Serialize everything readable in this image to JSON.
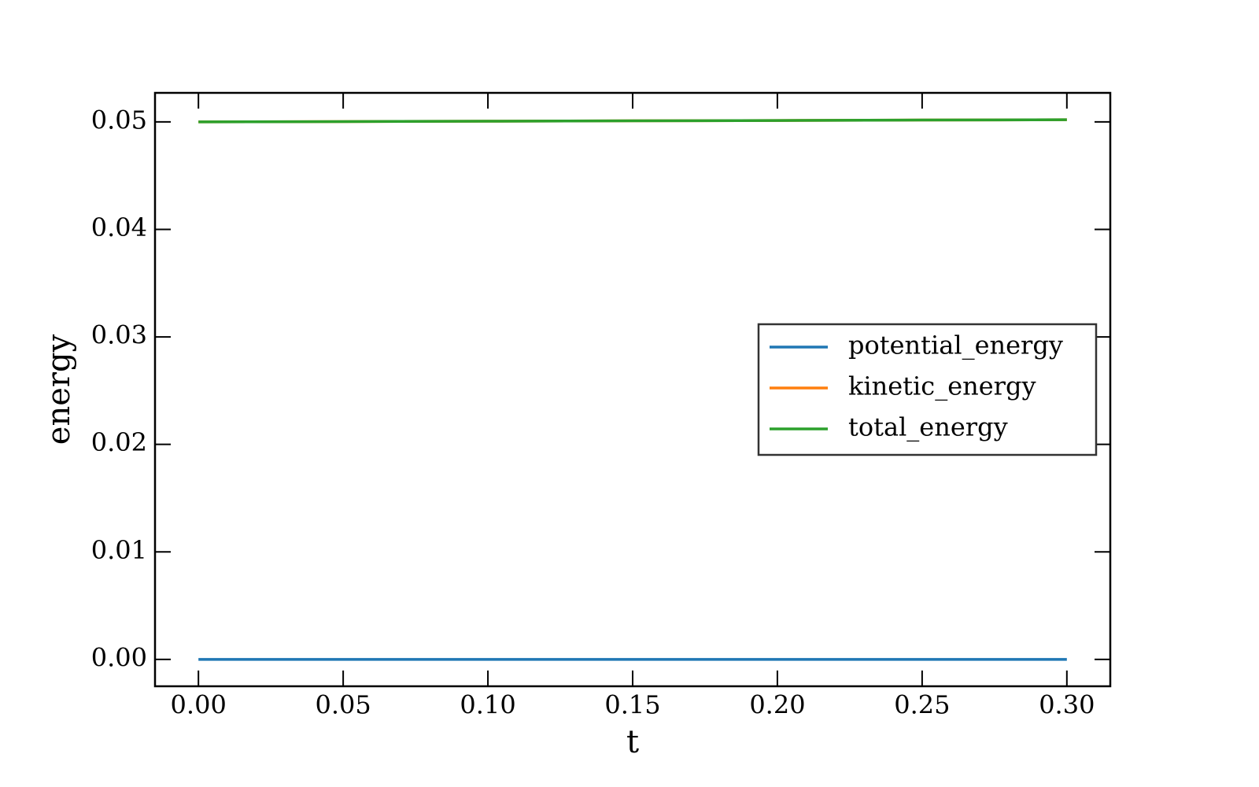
{
  "chart_data": {
    "type": "line",
    "xlabel": "t",
    "ylabel": "energy",
    "x": [
      0,
      0.05,
      0.1,
      0.15,
      0.2,
      0.25,
      0.3
    ],
    "series": [
      {
        "name": "potential_energy",
        "color": "#1f77b4",
        "values": [
          0,
          0,
          0,
          0,
          0,
          0,
          0
        ]
      },
      {
        "name": "kinetic_energy",
        "color": "#ff7f0e",
        "values": [
          0.05,
          0.05003,
          0.05006,
          0.0501,
          0.05013,
          0.05017,
          0.0502
        ]
      },
      {
        "name": "total_energy",
        "color": "#2ca02c",
        "values": [
          0.05,
          0.05003,
          0.05006,
          0.0501,
          0.05013,
          0.05017,
          0.0502
        ]
      }
    ],
    "xlim": [
      -0.015,
      0.315
    ],
    "ylim": [
      -0.0025,
      0.0527
    ],
    "xticks": [
      {
        "value": 0,
        "label": "0.00"
      },
      0.05,
      {
        "value": 0.1,
        "label": "0.10"
      },
      0.15,
      {
        "value": 0.2,
        "label": "0.20"
      },
      0.25,
      {
        "value": 0.3,
        "label": "0.30"
      }
    ],
    "yticks": [
      {
        "value": 0,
        "label": "0.00"
      },
      0.01,
      0.02,
      0.03,
      0.04,
      0.05
    ],
    "legend": "center right",
    "grid": false
  }
}
